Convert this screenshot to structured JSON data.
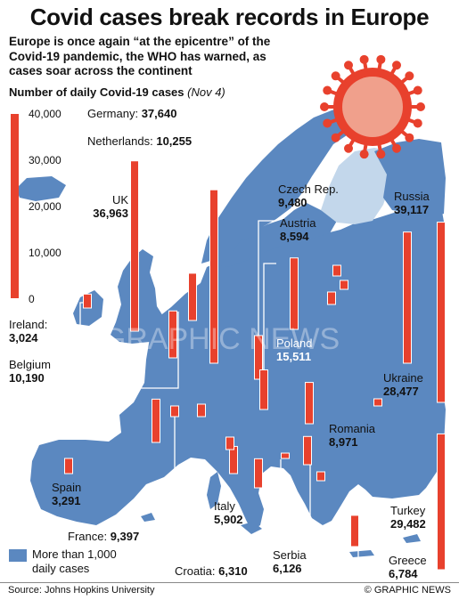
{
  "title": "Covid cases break records in Europe",
  "subtitle": "Europe is once again “at the epicentre” of the Covid-19 pandemic, the WHO has warned, as cases soar across the continent",
  "chart_title": "Number of daily Covid-19 cases",
  "chart_date": "(Nov 4)",
  "source": "Source: Johns Hopkins University",
  "credit": "© GRAPHIC NEWS",
  "watermark": "GRAPHIC NEWS",
  "legend": {
    "label": "More than 1,000 daily cases",
    "color": "#5b88c0"
  },
  "colors": {
    "sea": "#ffffff",
    "highlight": "#5b88c0",
    "other_land": "#c3d7eb",
    "bar": "#e8412d"
  },
  "chart_data": {
    "type": "bar",
    "unit": "daily cases",
    "scale_ticks": [
      "40,000",
      "30,000",
      "20,000",
      "10,000",
      "0"
    ],
    "ylim": [
      0,
      40000
    ],
    "countries": [
      {
        "name": "Germany",
        "value": 37640,
        "value_label": "37,640"
      },
      {
        "name": "Netherlands",
        "value": 10255,
        "value_label": "10,255"
      },
      {
        "name": "UK",
        "value": 36963,
        "value_label": "36,963"
      },
      {
        "name": "Ireland",
        "value": 3024,
        "value_label": "3,024"
      },
      {
        "name": "Belgium",
        "value": 10190,
        "value_label": "10,190"
      },
      {
        "name": "Czech Rep.",
        "value": 9480,
        "value_label": "9,480"
      },
      {
        "name": "Austria",
        "value": 8594,
        "value_label": "8,594"
      },
      {
        "name": "Poland",
        "value": 15511,
        "value_label": "15,511"
      },
      {
        "name": "Russia",
        "value": 39117,
        "value_label": "39,117"
      },
      {
        "name": "Ukraine",
        "value": 28477,
        "value_label": "28,477"
      },
      {
        "name": "Romania",
        "value": 8971,
        "value_label": "8,971"
      },
      {
        "name": "Spain",
        "value": 3291,
        "value_label": "3,291"
      },
      {
        "name": "France",
        "value": 9397,
        "value_label": "9,397"
      },
      {
        "name": "Italy",
        "value": 5902,
        "value_label": "5,902"
      },
      {
        "name": "Serbia",
        "value": 6126,
        "value_label": "6,126"
      },
      {
        "name": "Croatia",
        "value": 6310,
        "value_label": "6,310"
      },
      {
        "name": "Turkey",
        "value": 29482,
        "value_label": "29,482"
      },
      {
        "name": "Greece",
        "value": 6784,
        "value_label": "6,784"
      }
    ]
  }
}
